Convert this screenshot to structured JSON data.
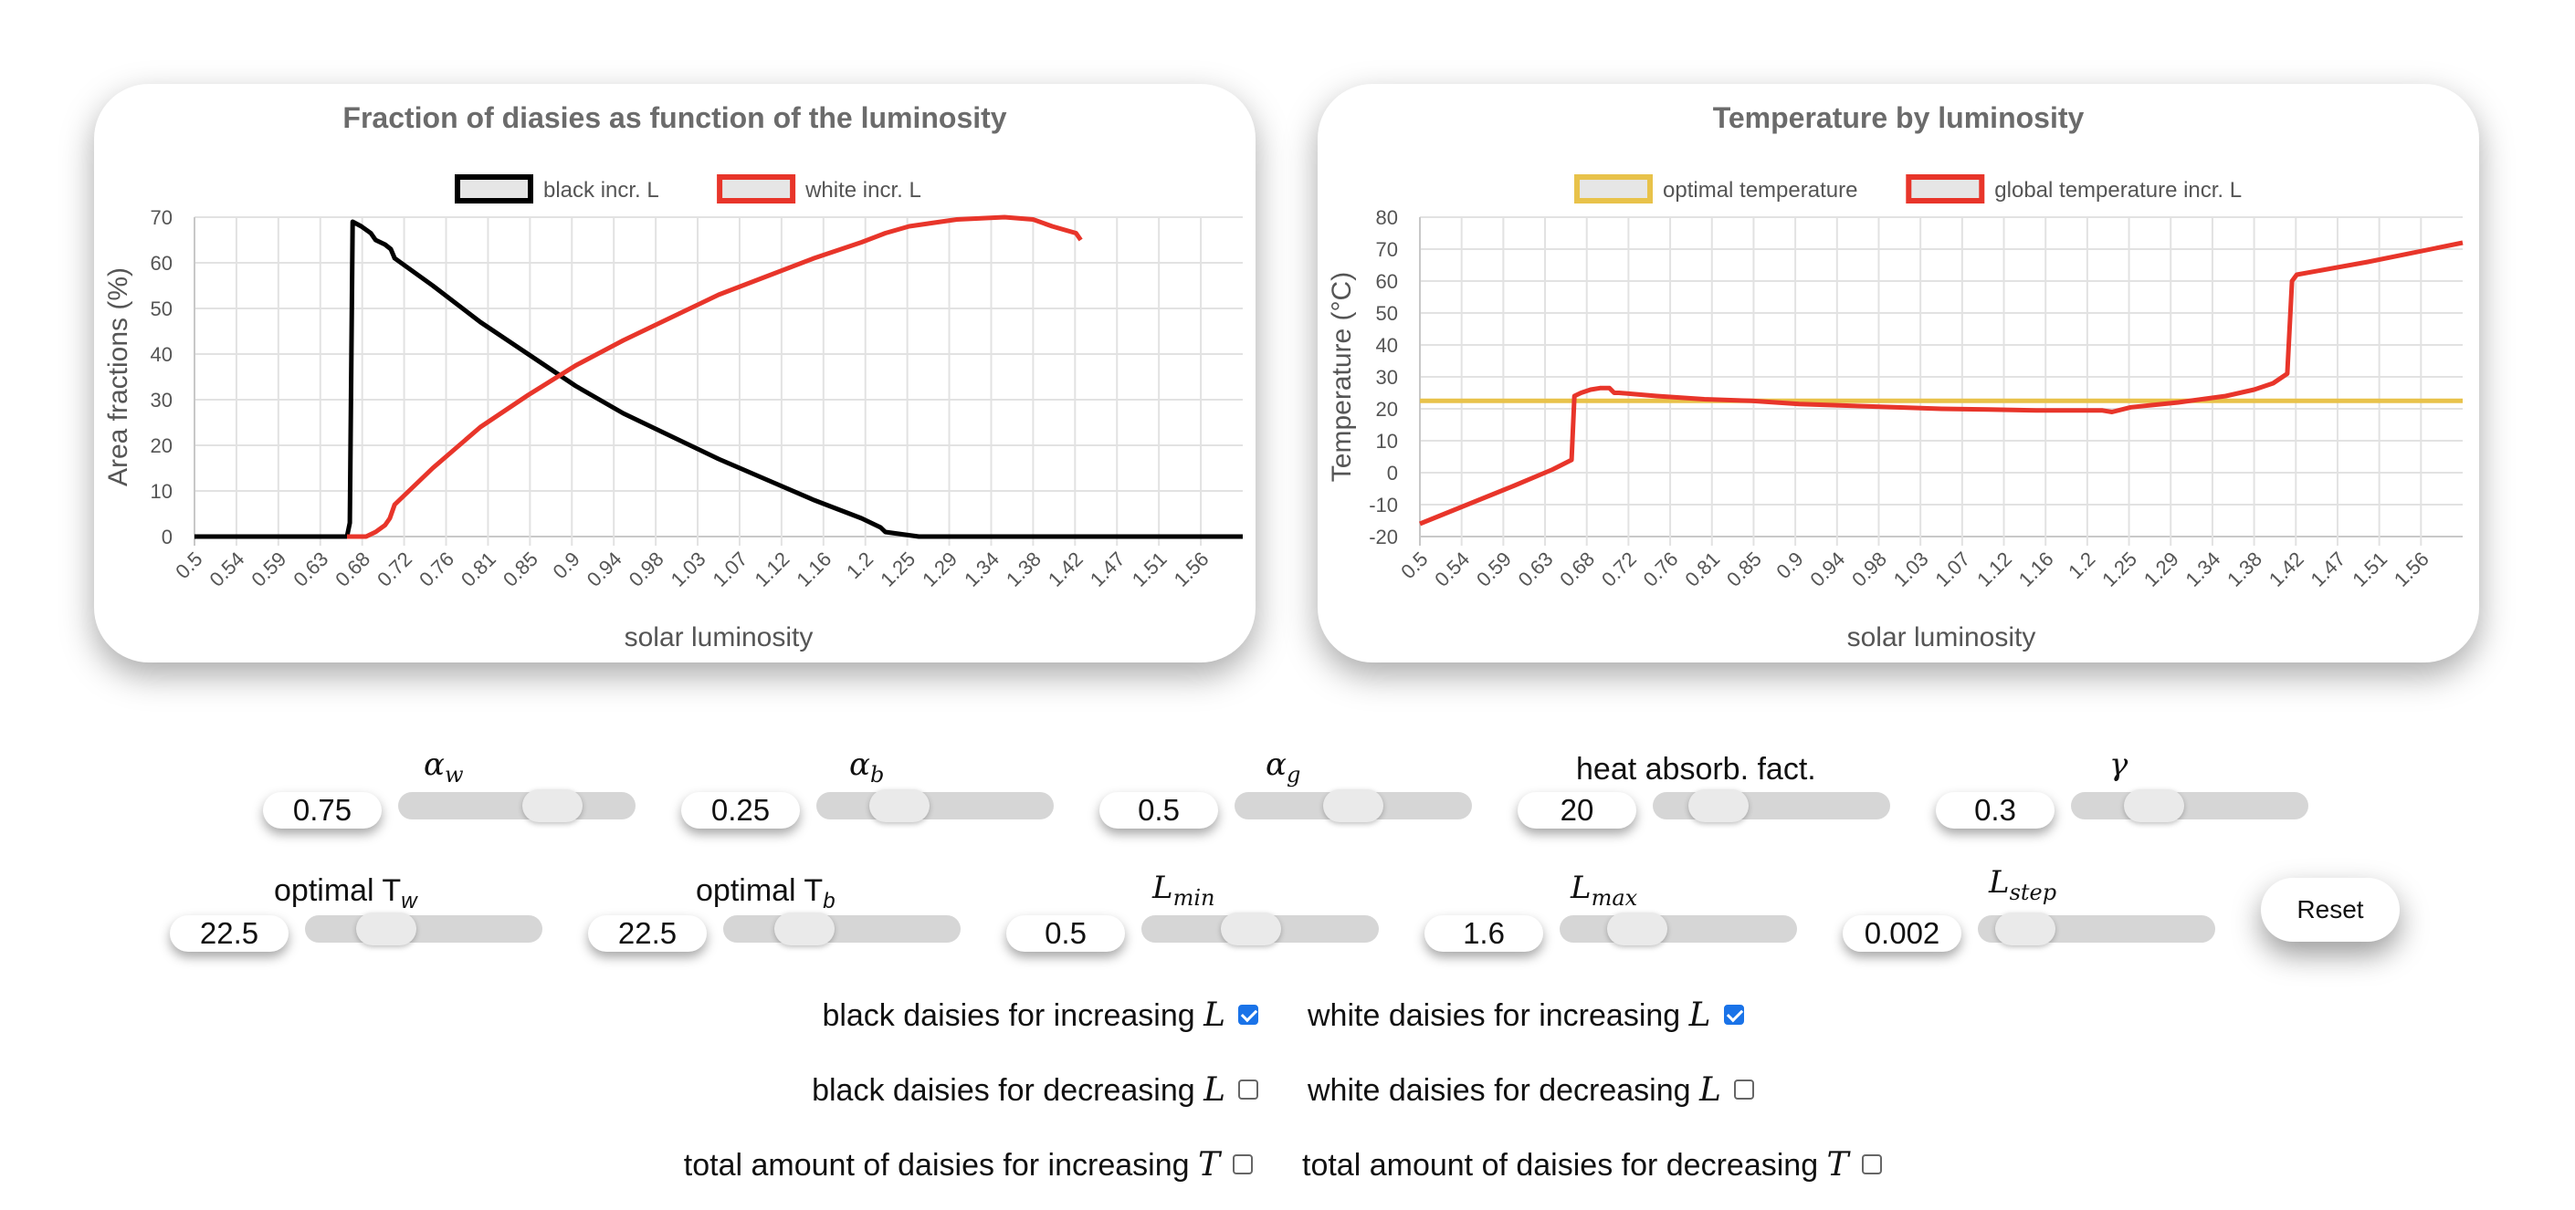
{
  "charts": {
    "fraction": {
      "title": "Fraction of diasies as function of the luminosity",
      "xlabel": "solar luminosity",
      "ylabel": "Area fractions (%)"
    },
    "temperature": {
      "title": "Temperature by luminosity",
      "xlabel": "solar luminosity",
      "ylabel": "Temperature (°C)"
    }
  },
  "chart_data": [
    {
      "type": "line",
      "title": "Fraction of diasies as function of the luminosity",
      "xlabel": "solar luminosity",
      "ylabel": "Area fractions (%)",
      "xlim": [
        0.5,
        1.6
      ],
      "ylim": [
        0,
        70
      ],
      "yticks": [
        0,
        10,
        20,
        30,
        40,
        50,
        60,
        70
      ],
      "xticks": [
        "0.5",
        "0.54",
        "0.59",
        "0.63",
        "0.68",
        "0.72",
        "0.76",
        "0.81",
        "0.85",
        "0.9",
        "0.94",
        "0.98",
        "1.03",
        "1.07",
        "1.12",
        "1.16",
        "1.2",
        "1.25",
        "1.29",
        "1.34",
        "1.38",
        "1.42",
        "1.47",
        "1.51",
        "1.56"
      ],
      "grid": true,
      "legend_position": "top",
      "series": [
        {
          "name": "black incr. L",
          "color": "#000000",
          "x": [
            0.5,
            0.66,
            0.663,
            0.666,
            0.675,
            0.685,
            0.69,
            0.7,
            0.706,
            0.71,
            0.75,
            0.8,
            0.85,
            0.9,
            0.95,
            1.0,
            1.05,
            1.1,
            1.15,
            1.2,
            1.22,
            1.225,
            1.26,
            1.6
          ],
          "y": [
            0,
            0,
            3,
            69,
            68,
            66.5,
            65,
            64,
            63,
            61,
            55,
            47,
            40,
            33,
            27,
            22,
            17,
            12.5,
            8,
            4,
            2,
            1,
            0,
            0
          ]
        },
        {
          "name": "white incr. L",
          "color": "#e8352a",
          "x": [
            0.5,
            0.66,
            0.68,
            0.69,
            0.7,
            0.705,
            0.71,
            0.75,
            0.8,
            0.85,
            0.9,
            0.95,
            1.0,
            1.05,
            1.1,
            1.15,
            1.2,
            1.225,
            1.25,
            1.3,
            1.35,
            1.38,
            1.4,
            1.425,
            1.43,
            1.43,
            1.6
          ],
          "y": [
            null,
            0,
            0,
            1,
            2.5,
            4,
            7,
            15,
            24,
            31,
            37.5,
            43,
            48,
            53,
            57,
            61,
            64.5,
            66.5,
            68,
            69.5,
            70,
            69.5,
            68,
            66.5,
            65,
            null,
            null
          ]
        }
      ]
    },
    {
      "type": "line",
      "title": "Temperature by luminosity",
      "xlabel": "solar luminosity",
      "ylabel": "Temperature (°C)",
      "xlim": [
        0.5,
        1.6
      ],
      "ylim": [
        -20,
        80
      ],
      "yticks": [
        -20,
        -10,
        0,
        10,
        20,
        30,
        40,
        50,
        60,
        70,
        80
      ],
      "xticks": [
        "0.5",
        "0.54",
        "0.59",
        "0.63",
        "0.68",
        "0.72",
        "0.76",
        "0.81",
        "0.85",
        "0.9",
        "0.94",
        "0.98",
        "1.03",
        "1.07",
        "1.12",
        "1.16",
        "1.2",
        "1.25",
        "1.29",
        "1.34",
        "1.38",
        "1.42",
        "1.47",
        "1.51",
        "1.56"
      ],
      "grid": true,
      "legend_position": "top",
      "series": [
        {
          "name": "optimal temperature",
          "color": "#e8c24a",
          "x": [
            0.5,
            1.6
          ],
          "y": [
            22.5,
            22.5
          ]
        },
        {
          "name": "global temperature incr. L",
          "color": "#e8352a",
          "x": [
            0.5,
            0.55,
            0.6,
            0.64,
            0.66,
            0.663,
            0.67,
            0.68,
            0.69,
            0.7,
            0.705,
            0.71,
            0.75,
            0.8,
            0.85,
            0.9,
            0.95,
            1.0,
            1.05,
            1.1,
            1.15,
            1.2,
            1.22,
            1.23,
            1.25,
            1.3,
            1.35,
            1.38,
            1.4,
            1.415,
            1.42,
            1.425,
            1.5,
            1.6
          ],
          "y": [
            -16,
            -10,
            -4,
            1,
            4,
            24,
            25,
            26,
            26.5,
            26.5,
            25,
            25,
            24,
            23,
            22.5,
            21.5,
            21,
            20.5,
            20,
            19.8,
            19.5,
            19.5,
            19.5,
            19,
            20.5,
            22,
            24,
            26,
            28,
            31,
            60,
            62,
            66,
            72
          ]
        }
      ]
    }
  ],
  "controls": {
    "row1": [
      {
        "label": "α",
        "sub": "w",
        "value": "0.75",
        "fraction": 0.7
      },
      {
        "label": "α",
        "sub": "b",
        "value": "0.25",
        "fraction": 0.3
      },
      {
        "label": "α",
        "sub": "g",
        "value": "0.5",
        "fraction": 0.5
      },
      {
        "label": "heat absorb. fact.",
        "sub": "",
        "value": "20",
        "fraction": 0.2
      },
      {
        "label": "γ",
        "sub": "",
        "value": "0.3",
        "fraction": 0.3
      }
    ],
    "row2": [
      {
        "label": "optimal T",
        "sub": "w",
        "value": "22.5",
        "fraction": 0.29
      },
      {
        "label": "optimal T",
        "sub": "b",
        "value": "22.5",
        "fraction": 0.29
      },
      {
        "label": "L",
        "sub": "min",
        "value": "0.5",
        "fraction": 0.45
      },
      {
        "label": "L",
        "sub": "max",
        "value": "1.6",
        "fraction": 0.27
      },
      {
        "label": "L",
        "sub": "step",
        "value": "0.002",
        "fraction": 0.1
      }
    ],
    "reset_label": "Reset"
  },
  "checkboxes": [
    {
      "text": "black daisies for increasing ",
      "var": "L",
      "checked": true
    },
    {
      "text": "white daisies for increasing ",
      "var": "L",
      "checked": true
    },
    {
      "text": "black daisies for decreasing ",
      "var": "L",
      "checked": false
    },
    {
      "text": "white daisies for decreasing ",
      "var": "L",
      "checked": false
    },
    {
      "text": "total amount of daisies for increasing ",
      "var": "T",
      "checked": false
    },
    {
      "text": "total amount of daisies for decreasing ",
      "var": "T",
      "checked": false
    }
  ]
}
